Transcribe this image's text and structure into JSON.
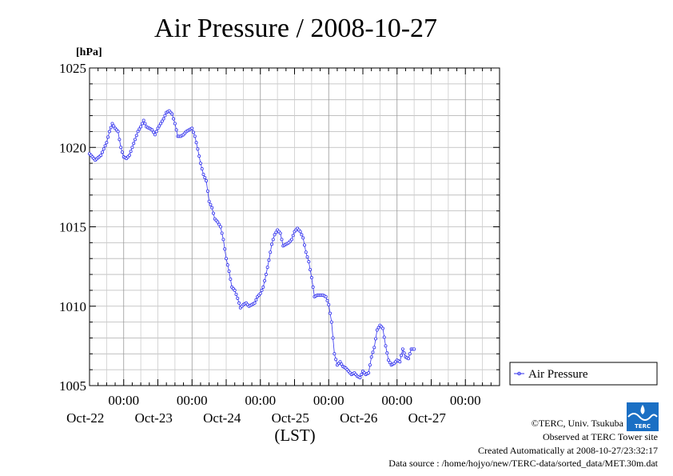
{
  "chart_data": {
    "type": "line",
    "title": "Air Pressure / 2008-10-27",
    "ylabel": "[hPa]",
    "xlabel": "(LST)",
    "ylim": [
      1005,
      1025
    ],
    "yticks": [
      {
        "value": 1005,
        "label": "1005"
      },
      {
        "value": 1010,
        "label": "1010"
      },
      {
        "value": 1015,
        "label": "1015"
      },
      {
        "value": 1020,
        "label": "1020"
      },
      {
        "value": 1025,
        "label": "1025"
      }
    ],
    "xlim": [
      0,
      144
    ],
    "xticks": [
      {
        "value": 12,
        "time": "00:00",
        "date": "Oct-22"
      },
      {
        "value": 36,
        "time": "00:00",
        "date": "Oct-23"
      },
      {
        "value": 60,
        "time": "00:00",
        "date": "Oct-24"
      },
      {
        "value": 84,
        "time": "00:00",
        "date": "Oct-25"
      },
      {
        "value": 108,
        "time": "00:00",
        "date": "Oct-26"
      },
      {
        "value": 132,
        "time": "00:00",
        "date": "Oct-27"
      }
    ],
    "grid": true,
    "legend_position": "right",
    "series": [
      {
        "name": "Air Pressure",
        "color": "#3333ee",
        "points": [
          [
            0,
            1019.6
          ],
          [
            2,
            1019.2
          ],
          [
            4,
            1019.5
          ],
          [
            6,
            1020.3
          ],
          [
            7,
            1021.0
          ],
          [
            8,
            1021.5
          ],
          [
            9,
            1021.2
          ],
          [
            10,
            1021.0
          ],
          [
            11,
            1020.0
          ],
          [
            12,
            1019.4
          ],
          [
            13,
            1019.3
          ],
          [
            14,
            1019.5
          ],
          [
            16,
            1020.5
          ],
          [
            17,
            1021.0
          ],
          [
            18,
            1021.3
          ],
          [
            19,
            1021.7
          ],
          [
            20,
            1021.3
          ],
          [
            21,
            1021.2
          ],
          [
            22,
            1021.1
          ],
          [
            23,
            1020.8
          ],
          [
            24,
            1021.2
          ],
          [
            25,
            1021.5
          ],
          [
            26,
            1021.8
          ],
          [
            27,
            1022.2
          ],
          [
            28,
            1022.3
          ],
          [
            29,
            1022.1
          ],
          [
            30,
            1021.5
          ],
          [
            31,
            1020.7
          ],
          [
            32,
            1020.7
          ],
          [
            33,
            1020.8
          ],
          [
            34,
            1021.0
          ],
          [
            35,
            1021.1
          ],
          [
            36,
            1021.2
          ],
          [
            37,
            1020.7
          ],
          [
            38,
            1019.9
          ],
          [
            39,
            1019.0
          ],
          [
            40,
            1018.3
          ],
          [
            41,
            1017.9
          ],
          [
            42,
            1016.6
          ],
          [
            43,
            1016.2
          ],
          [
            44,
            1015.5
          ],
          [
            45,
            1015.3
          ],
          [
            46,
            1015.0
          ],
          [
            47,
            1014.2
          ],
          [
            48,
            1013.0
          ],
          [
            49,
            1012.2
          ],
          [
            50,
            1011.2
          ],
          [
            51,
            1011.0
          ],
          [
            52,
            1010.5
          ],
          [
            53,
            1009.9
          ],
          [
            54,
            1010.1
          ],
          [
            55,
            1010.2
          ],
          [
            56,
            1010.0
          ],
          [
            57,
            1010.1
          ],
          [
            58,
            1010.2
          ],
          [
            59,
            1010.6
          ],
          [
            60,
            1010.8
          ],
          [
            61,
            1011.2
          ],
          [
            62,
            1012.0
          ],
          [
            63,
            1012.9
          ],
          [
            64,
            1013.9
          ],
          [
            65,
            1014.5
          ],
          [
            66,
            1014.8
          ],
          [
            67,
            1014.6
          ],
          [
            68,
            1013.8
          ],
          [
            69,
            1013.9
          ],
          [
            70,
            1014.0
          ],
          [
            71,
            1014.2
          ],
          [
            72,
            1014.7
          ],
          [
            73,
            1014.9
          ],
          [
            74,
            1014.7
          ],
          [
            75,
            1014.3
          ],
          [
            76,
            1013.4
          ],
          [
            77,
            1012.8
          ],
          [
            78,
            1011.8
          ],
          [
            79,
            1010.6
          ],
          [
            80,
            1010.7
          ],
          [
            82,
            1010.7
          ],
          [
            83,
            1010.6
          ],
          [
            84,
            1010.1
          ],
          [
            85,
            1009.0
          ],
          [
            86,
            1007.0
          ],
          [
            87,
            1006.3
          ],
          [
            88,
            1006.5
          ],
          [
            89,
            1006.2
          ],
          [
            90,
            1006.1
          ],
          [
            91,
            1005.9
          ],
          [
            92,
            1005.7
          ],
          [
            93,
            1005.8
          ],
          [
            94,
            1005.6
          ],
          [
            95,
            1005.5
          ],
          [
            96,
            1005.9
          ],
          [
            97,
            1005.7
          ],
          [
            98,
            1005.8
          ],
          [
            99,
            1006.8
          ],
          [
            100,
            1007.4
          ],
          [
            101,
            1008.5
          ],
          [
            102,
            1008.8
          ],
          [
            103,
            1008.6
          ],
          [
            104,
            1007.5
          ],
          [
            105,
            1006.6
          ],
          [
            106,
            1006.3
          ],
          [
            107,
            1006.4
          ],
          [
            108,
            1006.6
          ],
          [
            109,
            1006.5
          ],
          [
            110,
            1007.3
          ],
          [
            111,
            1006.8
          ],
          [
            112,
            1006.7
          ],
          [
            113,
            1007.3
          ],
          [
            114,
            1007.3
          ]
        ]
      }
    ]
  },
  "legend": {
    "label": "Air Pressure"
  },
  "credits": {
    "copyright": "©TERC, Univ. Tsukuba",
    "observed": "Observed at TERC Tower site",
    "created": "Created Automatically at 2008-10-27/23:32:17",
    "source": "Data source : /home/hojyo/new/TERC-data/sorted_data/MET.30m.dat"
  },
  "logo": {
    "icon": "terc-logo",
    "text": "TERC",
    "color": "#1a6fc4"
  }
}
